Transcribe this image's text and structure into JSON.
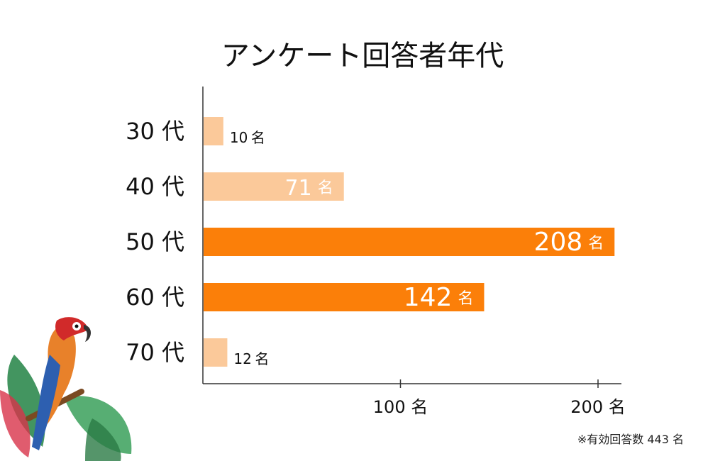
{
  "title": "アンケート回答者年代",
  "footnote": "※有効回答数 443 名",
  "unit": "名",
  "colors": {
    "light": "#fbc99a",
    "dark": "#fb7f09",
    "axis": "#333333"
  },
  "chart_data": {
    "type": "bar",
    "orientation": "horizontal",
    "title": "アンケート回答者年代",
    "categories": [
      "30 代",
      "40 代",
      "50 代",
      "60 代",
      "70 代"
    ],
    "values": [
      10,
      71,
      208,
      142,
      12
    ],
    "value_labels": [
      "10",
      "71",
      "208",
      "142",
      "12"
    ],
    "value_unit": "名",
    "highlight": [
      false,
      false,
      true,
      true,
      false
    ],
    "xlim": [
      0,
      210
    ],
    "xticks": [
      100,
      200
    ],
    "xtick_labels": [
      "100 名",
      "200 名"
    ],
    "grid": false
  }
}
